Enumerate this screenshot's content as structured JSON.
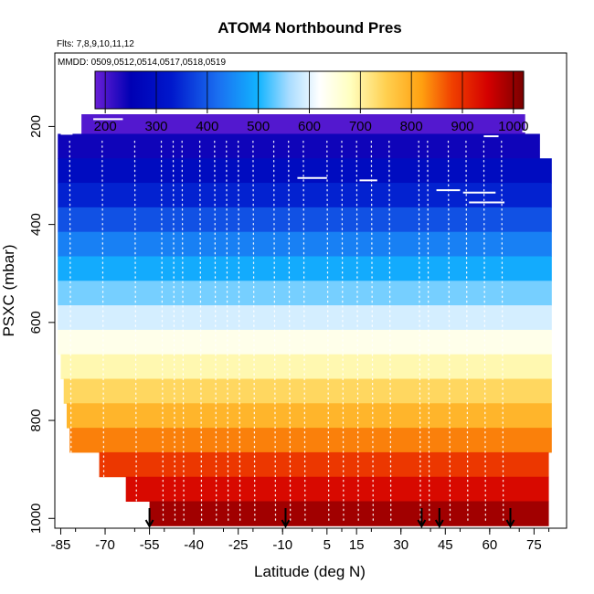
{
  "chart_data": {
    "type": "heatmap",
    "title": "ATOM4 Northbound Pres",
    "flights_label": "Flts: 7,8,9,10,11,12",
    "dates_label": "MMDD: 0509,0512,0514,0517,0518,0519",
    "xlabel": "Latitude (deg N)",
    "ylabel": "PSXC (mbar)",
    "xlim": [
      -87,
      86
    ],
    "ylim": [
      1020,
      50
    ],
    "x_ticks": [
      -85,
      -70,
      -55,
      -40,
      -25,
      -10,
      5,
      15,
      30,
      45,
      60,
      75
    ],
    "x_tick_labels": [
      "-85",
      "-70",
      "-55",
      "-40",
      "-25",
      "-10",
      "5",
      "15",
      "30",
      "45",
      "60",
      "75"
    ],
    "y_ticks": [
      200,
      400,
      600,
      800,
      1000
    ],
    "y_tick_labels": [
      "200",
      "400",
      "600",
      "800",
      "1000"
    ],
    "colorbar": {
      "min": 180,
      "max": 1020,
      "ticks": [
        200,
        300,
        400,
        500,
        600,
        700,
        800,
        900,
        1000
      ],
      "tick_labels": [
        "200",
        "300",
        "400",
        "500",
        "600",
        "700",
        "800",
        "900",
        "1000"
      ],
      "stops": [
        [
          180,
          "#6a1fd6"
        ],
        [
          250,
          "#0000b4"
        ],
        [
          330,
          "#0018cc"
        ],
        [
          420,
          "#1a6ef0"
        ],
        [
          500,
          "#12b4ff"
        ],
        [
          560,
          "#a8dcff"
        ],
        [
          620,
          "#ffffff"
        ],
        [
          680,
          "#ffffc0"
        ],
        [
          750,
          "#ffd050"
        ],
        [
          820,
          "#ffa010"
        ],
        [
          880,
          "#f04000"
        ],
        [
          950,
          "#d40000"
        ],
        [
          1020,
          "#7a0000"
        ]
      ]
    },
    "bands": [
      {
        "p0": 175,
        "p1": 215,
        "x0": -78,
        "x1": 72
      },
      {
        "p0": 215,
        "p1": 265,
        "x0": -86,
        "x1": 77
      },
      {
        "p0": 265,
        "p1": 315,
        "x0": -86,
        "x1": 81
      },
      {
        "p0": 315,
        "p1": 365,
        "x0": -86,
        "x1": 81
      },
      {
        "p0": 365,
        "p1": 415,
        "x0": -86,
        "x1": 81
      },
      {
        "p0": 415,
        "p1": 465,
        "x0": -86,
        "x1": 81
      },
      {
        "p0": 465,
        "p1": 515,
        "x0": -86,
        "x1": 81
      },
      {
        "p0": 515,
        "p1": 565,
        "x0": -86,
        "x1": 81
      },
      {
        "p0": 565,
        "p1": 615,
        "x0": -86,
        "x1": 81
      },
      {
        "p0": 615,
        "p1": 665,
        "x0": -86,
        "x1": 81
      },
      {
        "p0": 665,
        "p1": 715,
        "x0": -85,
        "x1": 81
      },
      {
        "p0": 715,
        "p1": 765,
        "x0": -84,
        "x1": 81
      },
      {
        "p0": 765,
        "p1": 815,
        "x0": -83,
        "x1": 81
      },
      {
        "p0": 815,
        "p1": 865,
        "x0": -82,
        "x1": 81
      },
      {
        "p0": 865,
        "p1": 915,
        "x0": -72,
        "x1": 80
      },
      {
        "p0": 915,
        "p1": 965,
        "x0": -63,
        "x1": 80
      },
      {
        "p0": 965,
        "p1": 1015,
        "x0": -55,
        "x1": 80
      }
    ],
    "flight_level_segments": [
      {
        "x0": -85,
        "x1": -81,
        "p": 215
      },
      {
        "x0": -74,
        "x1": -64,
        "p": 185
      },
      {
        "x0": -5,
        "x1": 5,
        "p": 305
      },
      {
        "x0": 16,
        "x1": 22,
        "p": 310
      },
      {
        "x0": 42,
        "x1": 50,
        "p": 330
      },
      {
        "x0": 51,
        "x1": 62,
        "p": 335
      },
      {
        "x0": 53,
        "x1": 65,
        "p": 355
      },
      {
        "x0": 58,
        "x1": 63,
        "p": 220
      },
      {
        "x0": 71,
        "x1": 77,
        "p": 210
      }
    ],
    "profile_latitudes": [
      -82,
      -71,
      -60,
      -51,
      -47,
      -44,
      -38,
      -33,
      -29,
      -25,
      -20,
      -13,
      -8,
      -3,
      5,
      10,
      15,
      20,
      26,
      36,
      39,
      46,
      52,
      58,
      64
    ],
    "arrow_latitudes": [
      -55,
      -9,
      37,
      43,
      67
    ]
  }
}
